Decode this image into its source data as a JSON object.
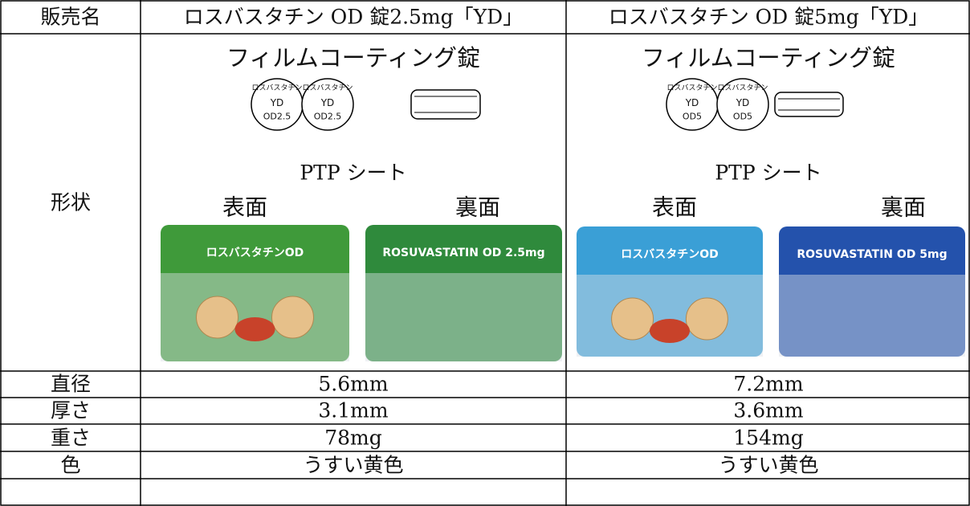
{
  "header": {
    "label": "販売名",
    "products": [
      "ロスバスタチン OD 錠2.5mg「YD」",
      "ロスバスタチン OD 錠5mg「YD」"
    ]
  },
  "shape": {
    "label": "形状",
    "items": [
      {
        "coating": "フィルムコーティング錠",
        "imprint": [
          "ロスバスタチン",
          "YD",
          "OD2.5"
        ],
        "ptp": "PTP シート",
        "front": "表面",
        "back": "裏面",
        "sheet_front": "ロスバスタチンOD",
        "sheet_back": "ROSUVASTATIN OD 2.5mg"
      },
      {
        "coating": "フィルムコーティング錠",
        "imprint": [
          "ロスバスタチン",
          "YD",
          "OD5"
        ],
        "ptp": "PTP シート",
        "front": "表面",
        "back": "裏面",
        "sheet_front": "ロスバスタチンOD",
        "sheet_back": "ROSUVASTATIN OD 5mg"
      }
    ]
  },
  "rows": [
    [
      "直径",
      "5.6mm",
      "7.2mm"
    ],
    [
      "厚さ",
      "3.1mm",
      "3.6mm"
    ],
    [
      "重さ",
      "78mg",
      "154mg"
    ],
    [
      "色",
      "うすい黄色",
      "うすい黄色"
    ]
  ]
}
